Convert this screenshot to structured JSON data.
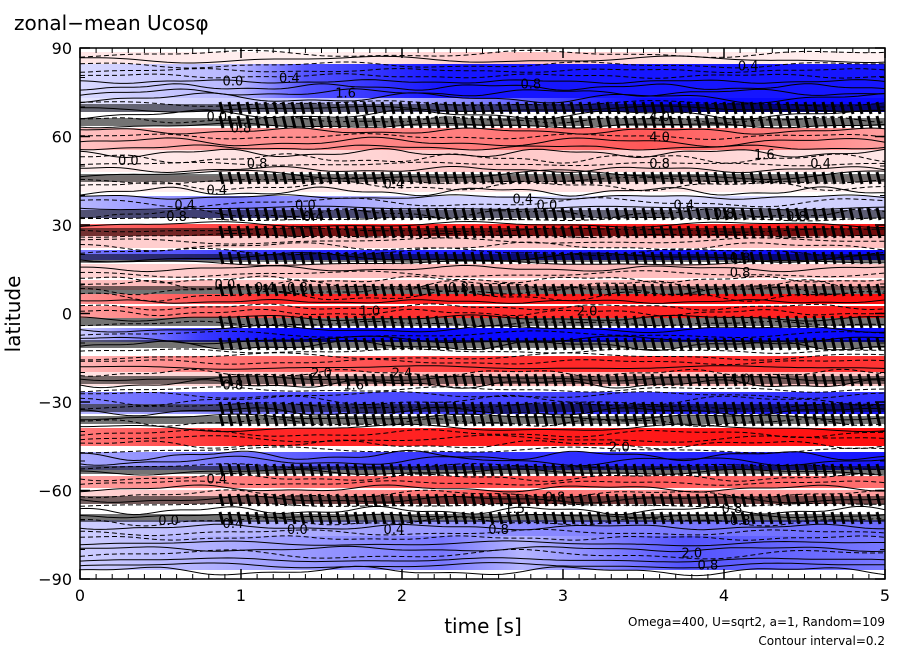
{
  "chart_data": {
    "type": "heatmap",
    "title": "zonal−mean Ucosφ",
    "xlabel": "time [s]",
    "ylabel": "latitude",
    "xlim": [
      0,
      5
    ],
    "ylim": [
      -90,
      90
    ],
    "x_ticks": [
      0,
      1,
      2,
      3,
      4,
      5
    ],
    "y_ticks": [
      90,
      60,
      30,
      0,
      -30,
      -60,
      -90
    ],
    "x_tick_labels": [
      "0",
      "1",
      "2",
      "3",
      "4",
      "5"
    ],
    "y_tick_labels": [
      "90",
      "60",
      "30",
      "0",
      "−30",
      "−60",
      "−90"
    ],
    "footnote_lines": [
      "Omega=400, U=sqrt2, a=1, Random=109",
      "Contour interval=0.2"
    ],
    "colors": {
      "positive": "#ff0000",
      "negative": "#0000ff",
      "zero": "#ffffff",
      "contour": "#000000"
    },
    "contour_labels": [
      {
        "text": "0.4",
        "t": 4.15,
        "lat": 84
      },
      {
        "text": "0.0",
        "t": 0.95,
        "lat": 79
      },
      {
        "text": "0.4",
        "t": 1.3,
        "lat": 80
      },
      {
        "text": "1.6",
        "t": 1.65,
        "lat": 75
      },
      {
        "text": "0.8",
        "t": 2.8,
        "lat": 78
      },
      {
        "text": "0.0",
        "t": 0.85,
        "lat": 67
      },
      {
        "text": "4.0",
        "t": 3.6,
        "lat": 67
      },
      {
        "text": "4.0",
        "t": 3.6,
        "lat": 60
      },
      {
        "text": "0.8",
        "t": 1.0,
        "lat": 63
      },
      {
        "text": "0.0",
        "t": 0.3,
        "lat": 52
      },
      {
        "text": "0.8",
        "t": 1.1,
        "lat": 51
      },
      {
        "text": "1.6",
        "t": 4.25,
        "lat": 54
      },
      {
        "text": "0.8",
        "t": 3.6,
        "lat": 51
      },
      {
        "text": "0.4",
        "t": 4.6,
        "lat": 51
      },
      {
        "text": "0.4",
        "t": 1.95,
        "lat": 44
      },
      {
        "text": "0.4",
        "t": 0.85,
        "lat": 42
      },
      {
        "text": "0.4",
        "t": 2.75,
        "lat": 39
      },
      {
        "text": "0.4",
        "t": 0.65,
        "lat": 37
      },
      {
        "text": "0.0",
        "t": 1.4,
        "lat": 37
      },
      {
        "text": "0.0",
        "t": 2.9,
        "lat": 37
      },
      {
        "text": "0.4",
        "t": 3.75,
        "lat": 37
      },
      {
        "text": "0.8",
        "t": 0.6,
        "lat": 33
      },
      {
        "text": "0.4",
        "t": 1.45,
        "lat": 33
      },
      {
        "text": "0.8",
        "t": 4.0,
        "lat": 34
      },
      {
        "text": "0.8",
        "t": 4.45,
        "lat": 33
      },
      {
        "text": "0.0",
        "t": 0.9,
        "lat": 10
      },
      {
        "text": "0.4",
        "t": 1.15,
        "lat": 9
      },
      {
        "text": "0.8",
        "t": 1.35,
        "lat": 9
      },
      {
        "text": "0.8",
        "t": 2.35,
        "lat": 9
      },
      {
        "text": "0.8",
        "t": 4.1,
        "lat": 19
      },
      {
        "text": "0.8",
        "t": 4.1,
        "lat": 14
      },
      {
        "text": "1.0",
        "t": 1.8,
        "lat": 1
      },
      {
        "text": "2.0",
        "t": 3.15,
        "lat": 1
      },
      {
        "text": "2.0",
        "t": 1.5,
        "lat": -20
      },
      {
        "text": "2.4",
        "t": 2.0,
        "lat": -20
      },
      {
        "text": "0.8",
        "t": 0.95,
        "lat": -24
      },
      {
        "text": "1.6",
        "t": 1.7,
        "lat": -24
      },
      {
        "text": "4.0",
        "t": 4.1,
        "lat": -22
      },
      {
        "text": "2.0",
        "t": 3.35,
        "lat": -45
      },
      {
        "text": "0.4",
        "t": 0.85,
        "lat": -56
      },
      {
        "text": "0.8",
        "t": 2.95,
        "lat": -62
      },
      {
        "text": "1.5",
        "t": 2.7,
        "lat": -66
      },
      {
        "text": "0.0",
        "t": 0.55,
        "lat": -70
      },
      {
        "text": "0.4",
        "t": 0.95,
        "lat": -71
      },
      {
        "text": "0.0",
        "t": 1.35,
        "lat": -73
      },
      {
        "text": "0.4",
        "t": 1.95,
        "lat": -73
      },
      {
        "text": "0.8",
        "t": 2.6,
        "lat": -73
      },
      {
        "text": "0.8",
        "t": 4.05,
        "lat": -66
      },
      {
        "text": "0.8",
        "t": 4.1,
        "lat": -70
      },
      {
        "text": "2.0",
        "t": 3.8,
        "lat": -81
      },
      {
        "text": "0.8",
        "t": 3.9,
        "lat": -85
      }
    ]
  }
}
